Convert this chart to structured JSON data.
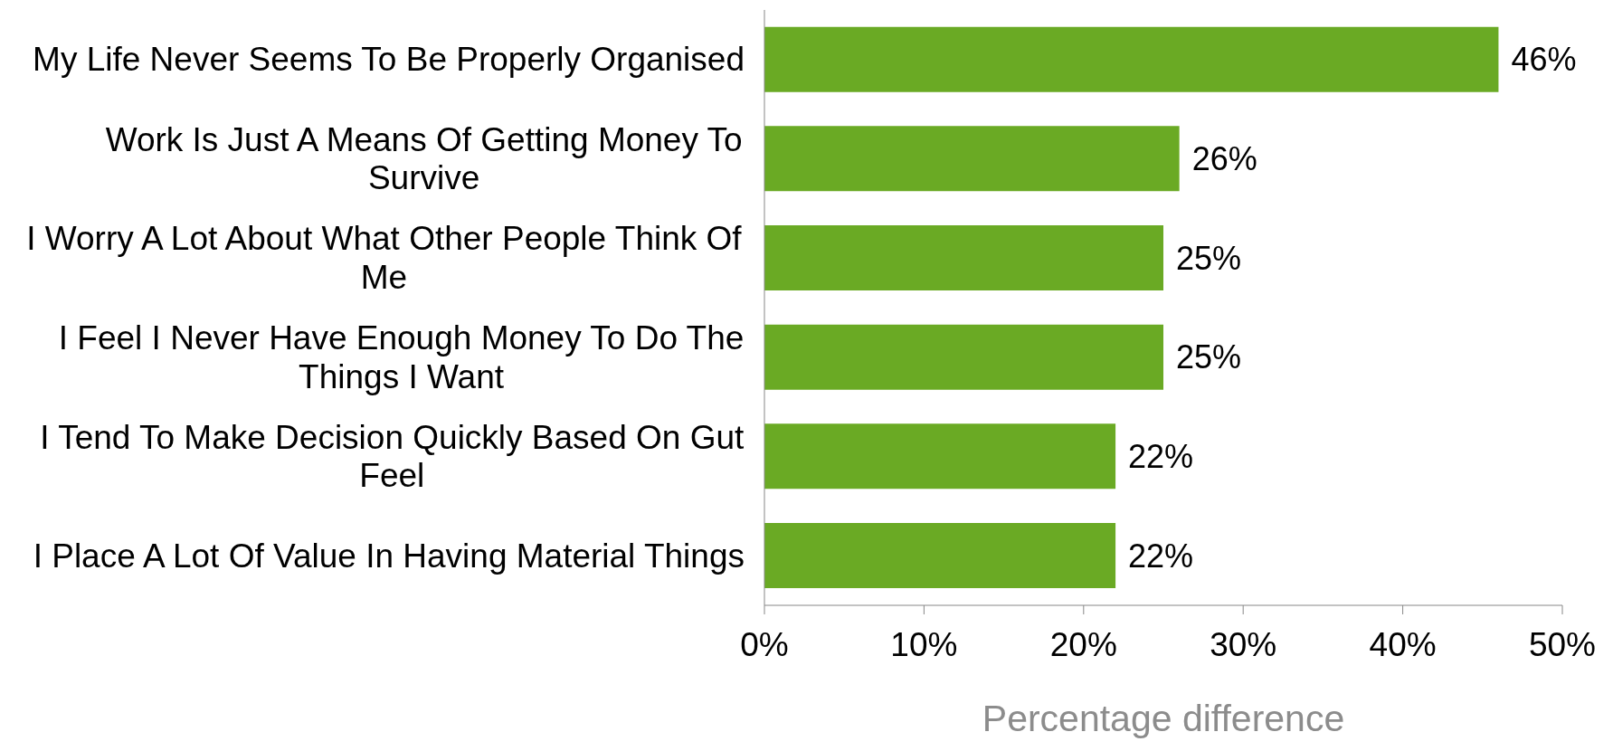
{
  "chart_data": {
    "type": "bar",
    "orientation": "horizontal",
    "xlabel": "Percentage difference",
    "categories": [
      "My Life Never Seems To Be Properly Organised",
      "Work Is Just A Means Of Getting Money To Survive",
      "I Worry A Lot About What Other People Think Of Me",
      "I Feel I Never Have Enough Money To Do The Things I Want",
      "I Tend To Make Decision Quickly Based On Gut Feel",
      "I Place A Lot Of Value In Having Material Things"
    ],
    "values": [
      46,
      26,
      25,
      25,
      22,
      22
    ],
    "value_labels": [
      "46%",
      "26%",
      "25%",
      "25%",
      "22%",
      "22%"
    ],
    "color": "#6aaa24",
    "xlim": [
      0,
      50
    ],
    "xticks": [
      {
        "value": 0,
        "label": "0%"
      },
      {
        "value": 10,
        "label": "10%"
      },
      {
        "value": 20,
        "label": "20%"
      },
      {
        "value": 30,
        "label": "30%"
      },
      {
        "value": 40,
        "label": "40%"
      },
      {
        "value": 50,
        "label": "50%"
      }
    ],
    "grid": false
  }
}
